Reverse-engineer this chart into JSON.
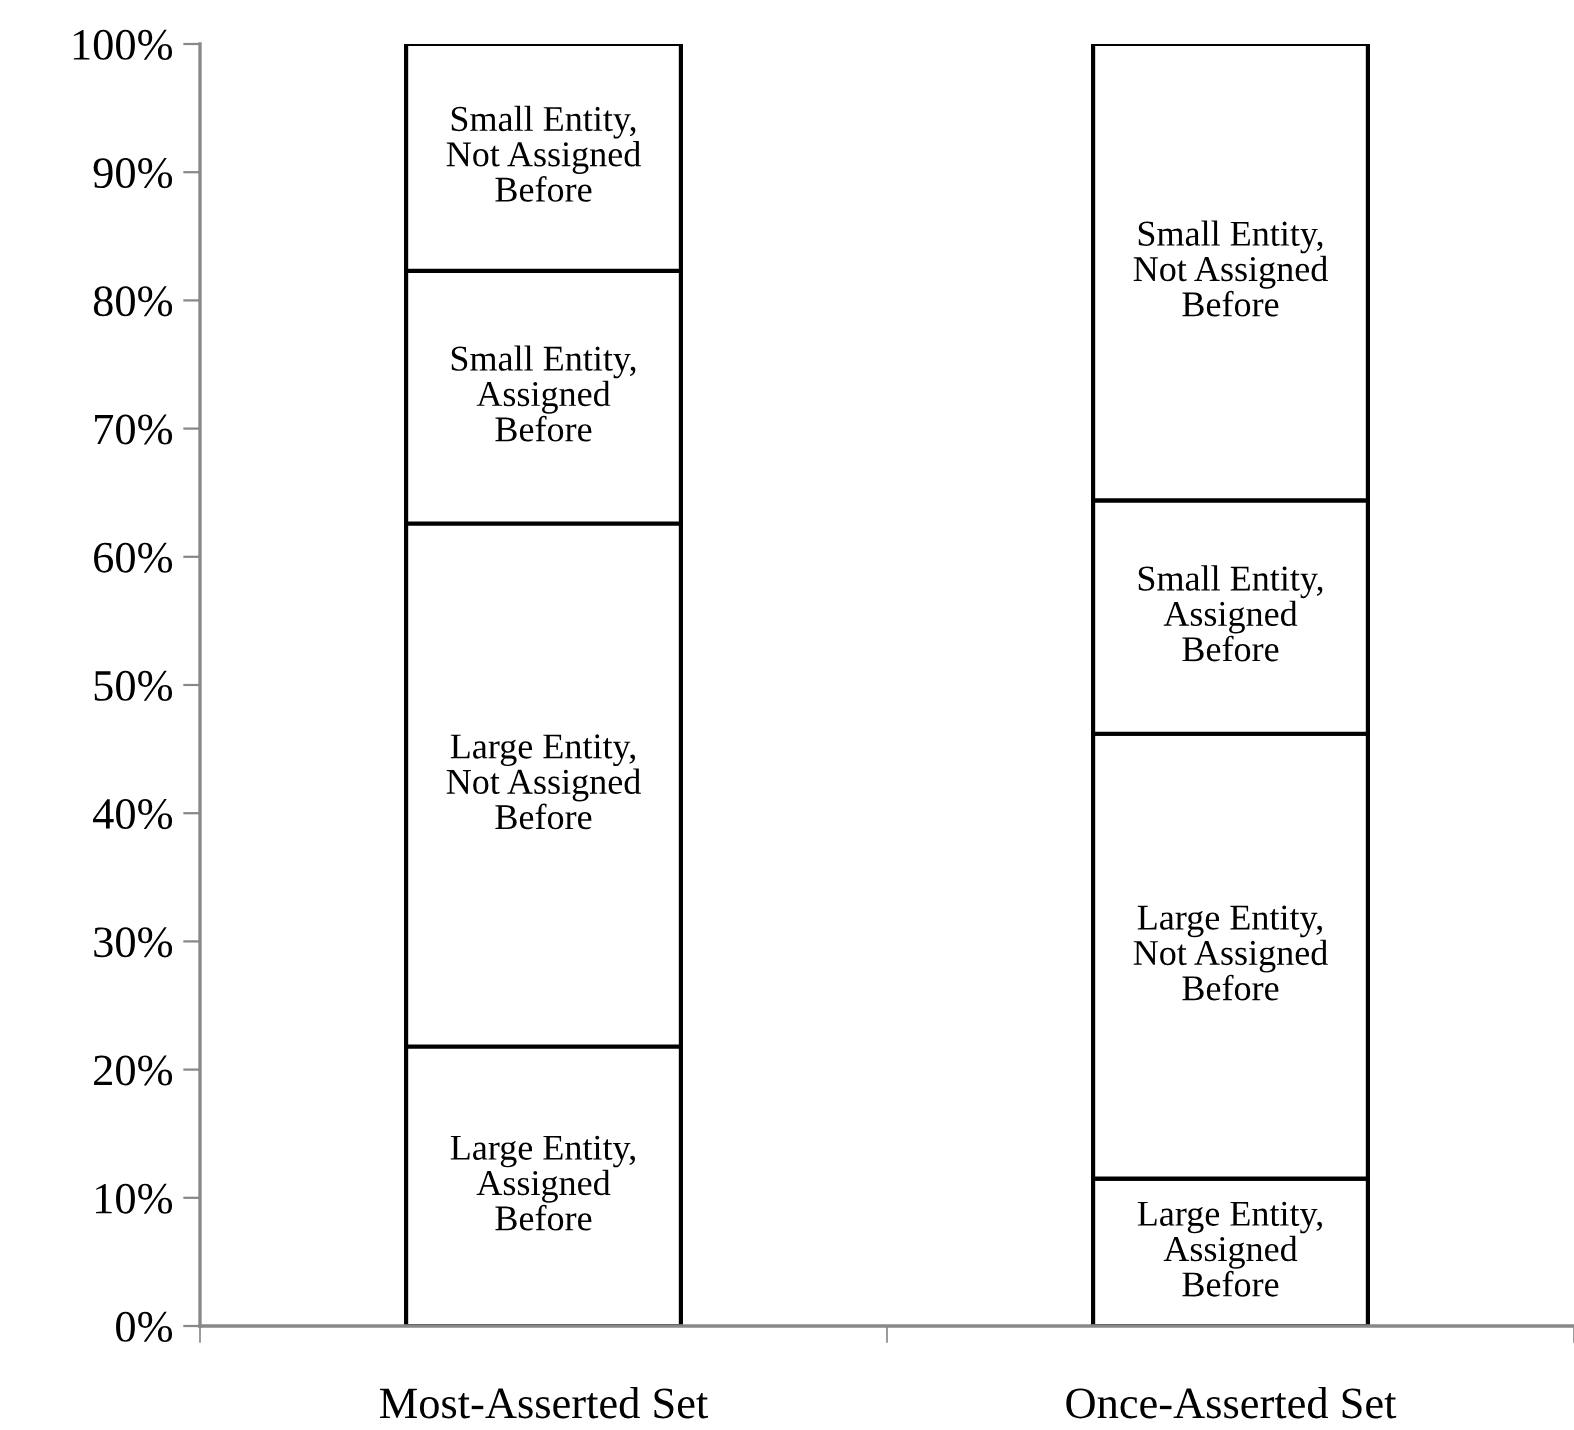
{
  "chart_data": {
    "type": "bar",
    "stacked": true,
    "categories": [
      "Most-Asserted Set",
      "Once-Asserted Set"
    ],
    "series": [
      {
        "name": "Large Entity,\nAssigned\nBefore",
        "color": "#ffffff",
        "values": [
          21.8,
          11.5
        ]
      },
      {
        "name": "Large Entity,\nNot Assigned\nBefore",
        "color": "#ffffff",
        "values": [
          40.8,
          34.7
        ]
      },
      {
        "name": "Small Entity,\nAssigned\nBefore",
        "color": "#ffffff",
        "values": [
          19.7,
          18.2
        ]
      },
      {
        "name": "Small Entity,\nNot Assigned\nBefore",
        "color": "#ffffff",
        "values": [
          17.7,
          35.6
        ]
      }
    ],
    "ylim": [
      0,
      100
    ],
    "yticks": [
      {
        "value": 0,
        "label": "0%"
      },
      {
        "value": 10,
        "label": "10%"
      },
      {
        "value": 20,
        "label": "20%"
      },
      {
        "value": 30,
        "label": "30%"
      },
      {
        "value": 40,
        "label": "40%"
      },
      {
        "value": 50,
        "label": "50%"
      },
      {
        "value": 60,
        "label": "60%"
      },
      {
        "value": 70,
        "label": "70%"
      },
      {
        "value": 80,
        "label": "80%"
      },
      {
        "value": 90,
        "label": "90%"
      },
      {
        "value": 100,
        "label": "100%"
      }
    ],
    "grid": false,
    "legend": false
  }
}
